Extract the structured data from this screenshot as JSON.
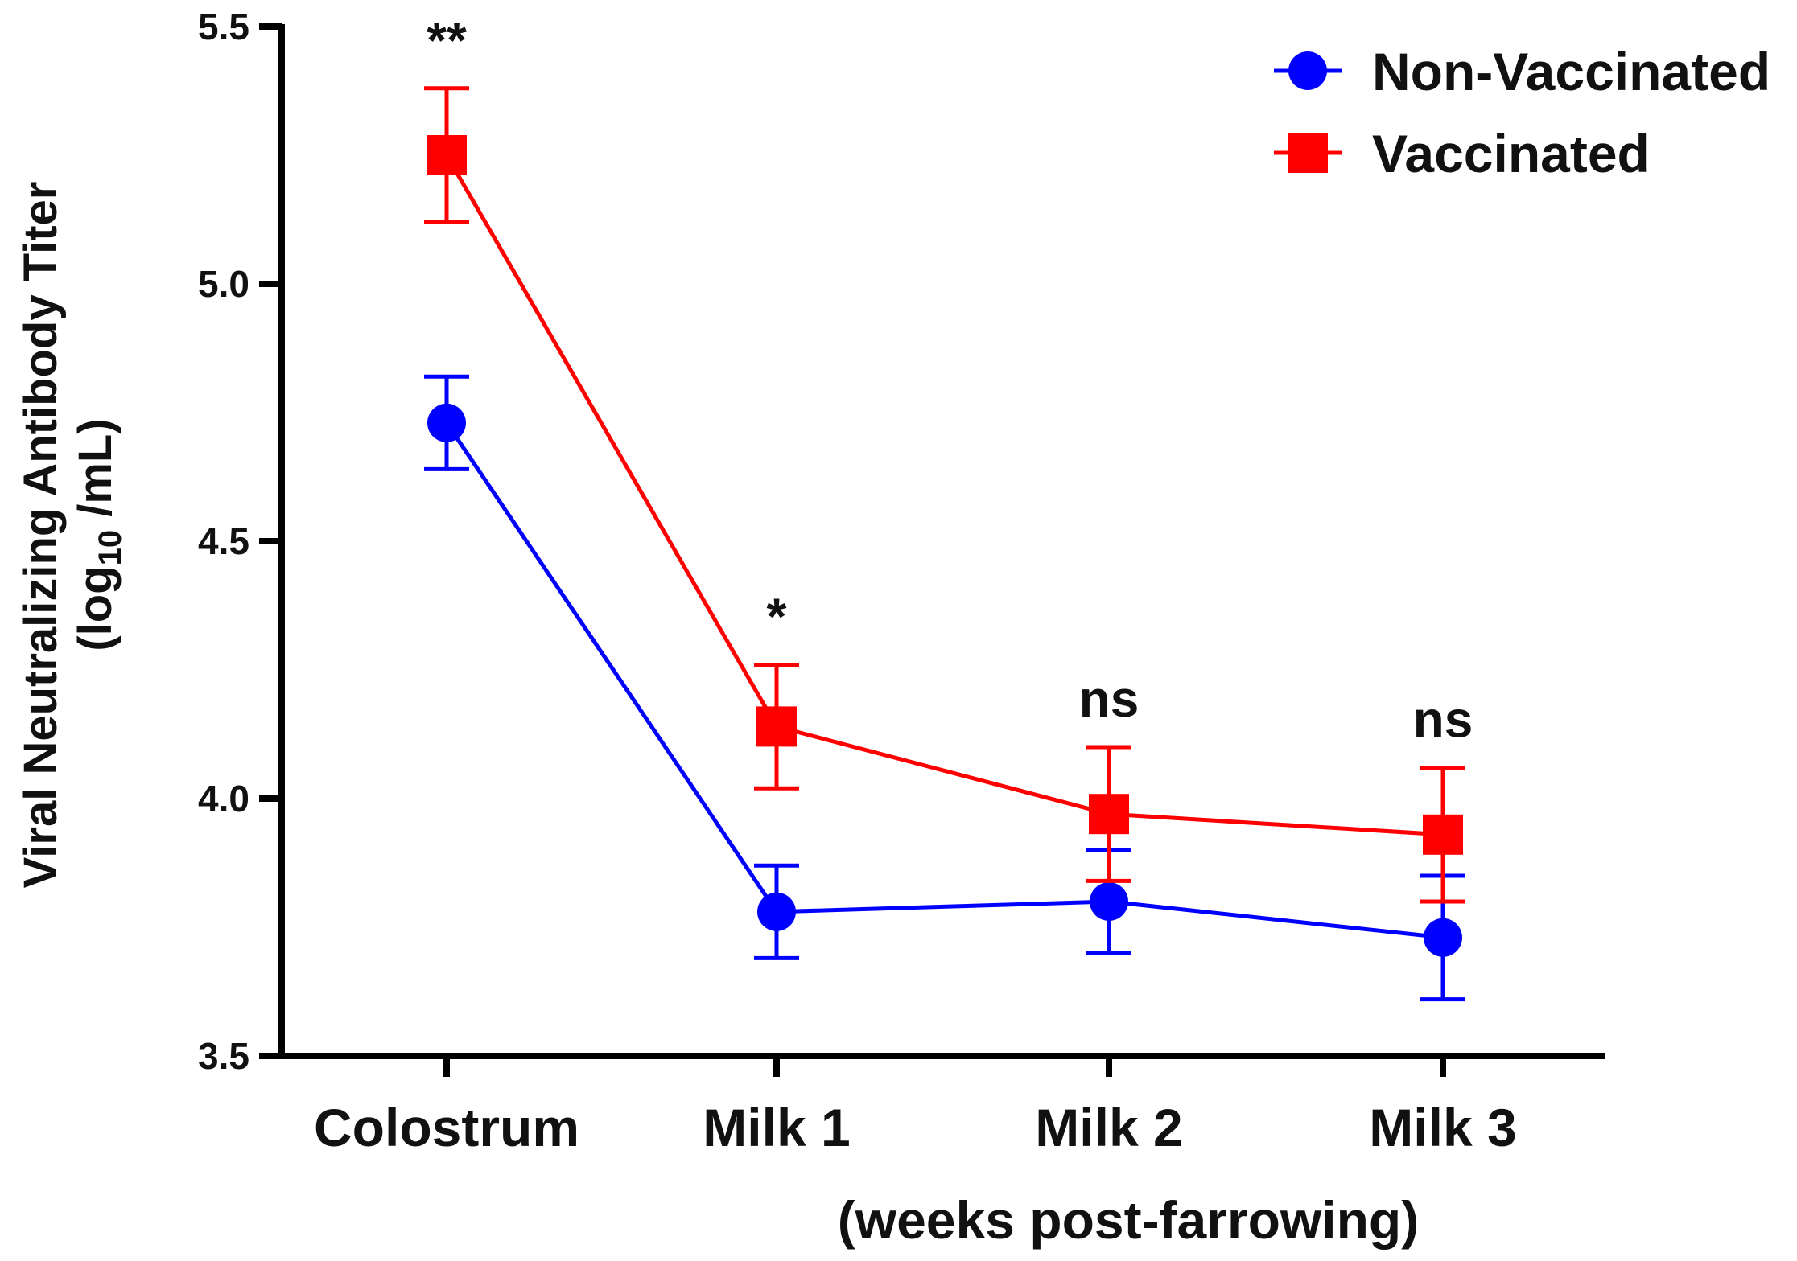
{
  "chart_data": {
    "type": "line",
    "categories": [
      "Colostrum",
      "Milk 1",
      "Milk 2",
      "Milk 3"
    ],
    "xlabel": "(weeks post-farrowing)",
    "ylabel_line1": "Viral Neutralizing Antibody Titer",
    "ylabel_line2_prefix": "(log",
    "ylabel_line2_sub": "10",
    "ylabel_line2_suffix": " /mL)",
    "ylim": [
      3.5,
      5.5
    ],
    "yticks": [
      "3.5",
      "4.0",
      "4.5",
      "5.0",
      "5.5"
    ],
    "ytick_values": [
      3.5,
      4.0,
      4.5,
      5.0,
      5.5
    ],
    "grid": false,
    "legend_position": "top-right",
    "series": [
      {
        "name": "Non-Vaccinated",
        "color": "#0000ff",
        "marker": "circle",
        "values": [
          4.73,
          3.78,
          3.8,
          3.73
        ],
        "errors": [
          0.09,
          0.09,
          0.1,
          0.12
        ]
      },
      {
        "name": "Vaccinated",
        "color": "#ff0000",
        "marker": "square",
        "values": [
          5.25,
          4.14,
          3.97,
          3.93
        ],
        "errors": [
          0.13,
          0.12,
          0.13,
          0.13
        ]
      }
    ],
    "annotations": [
      "**",
      "*",
      "ns",
      "ns"
    ]
  }
}
